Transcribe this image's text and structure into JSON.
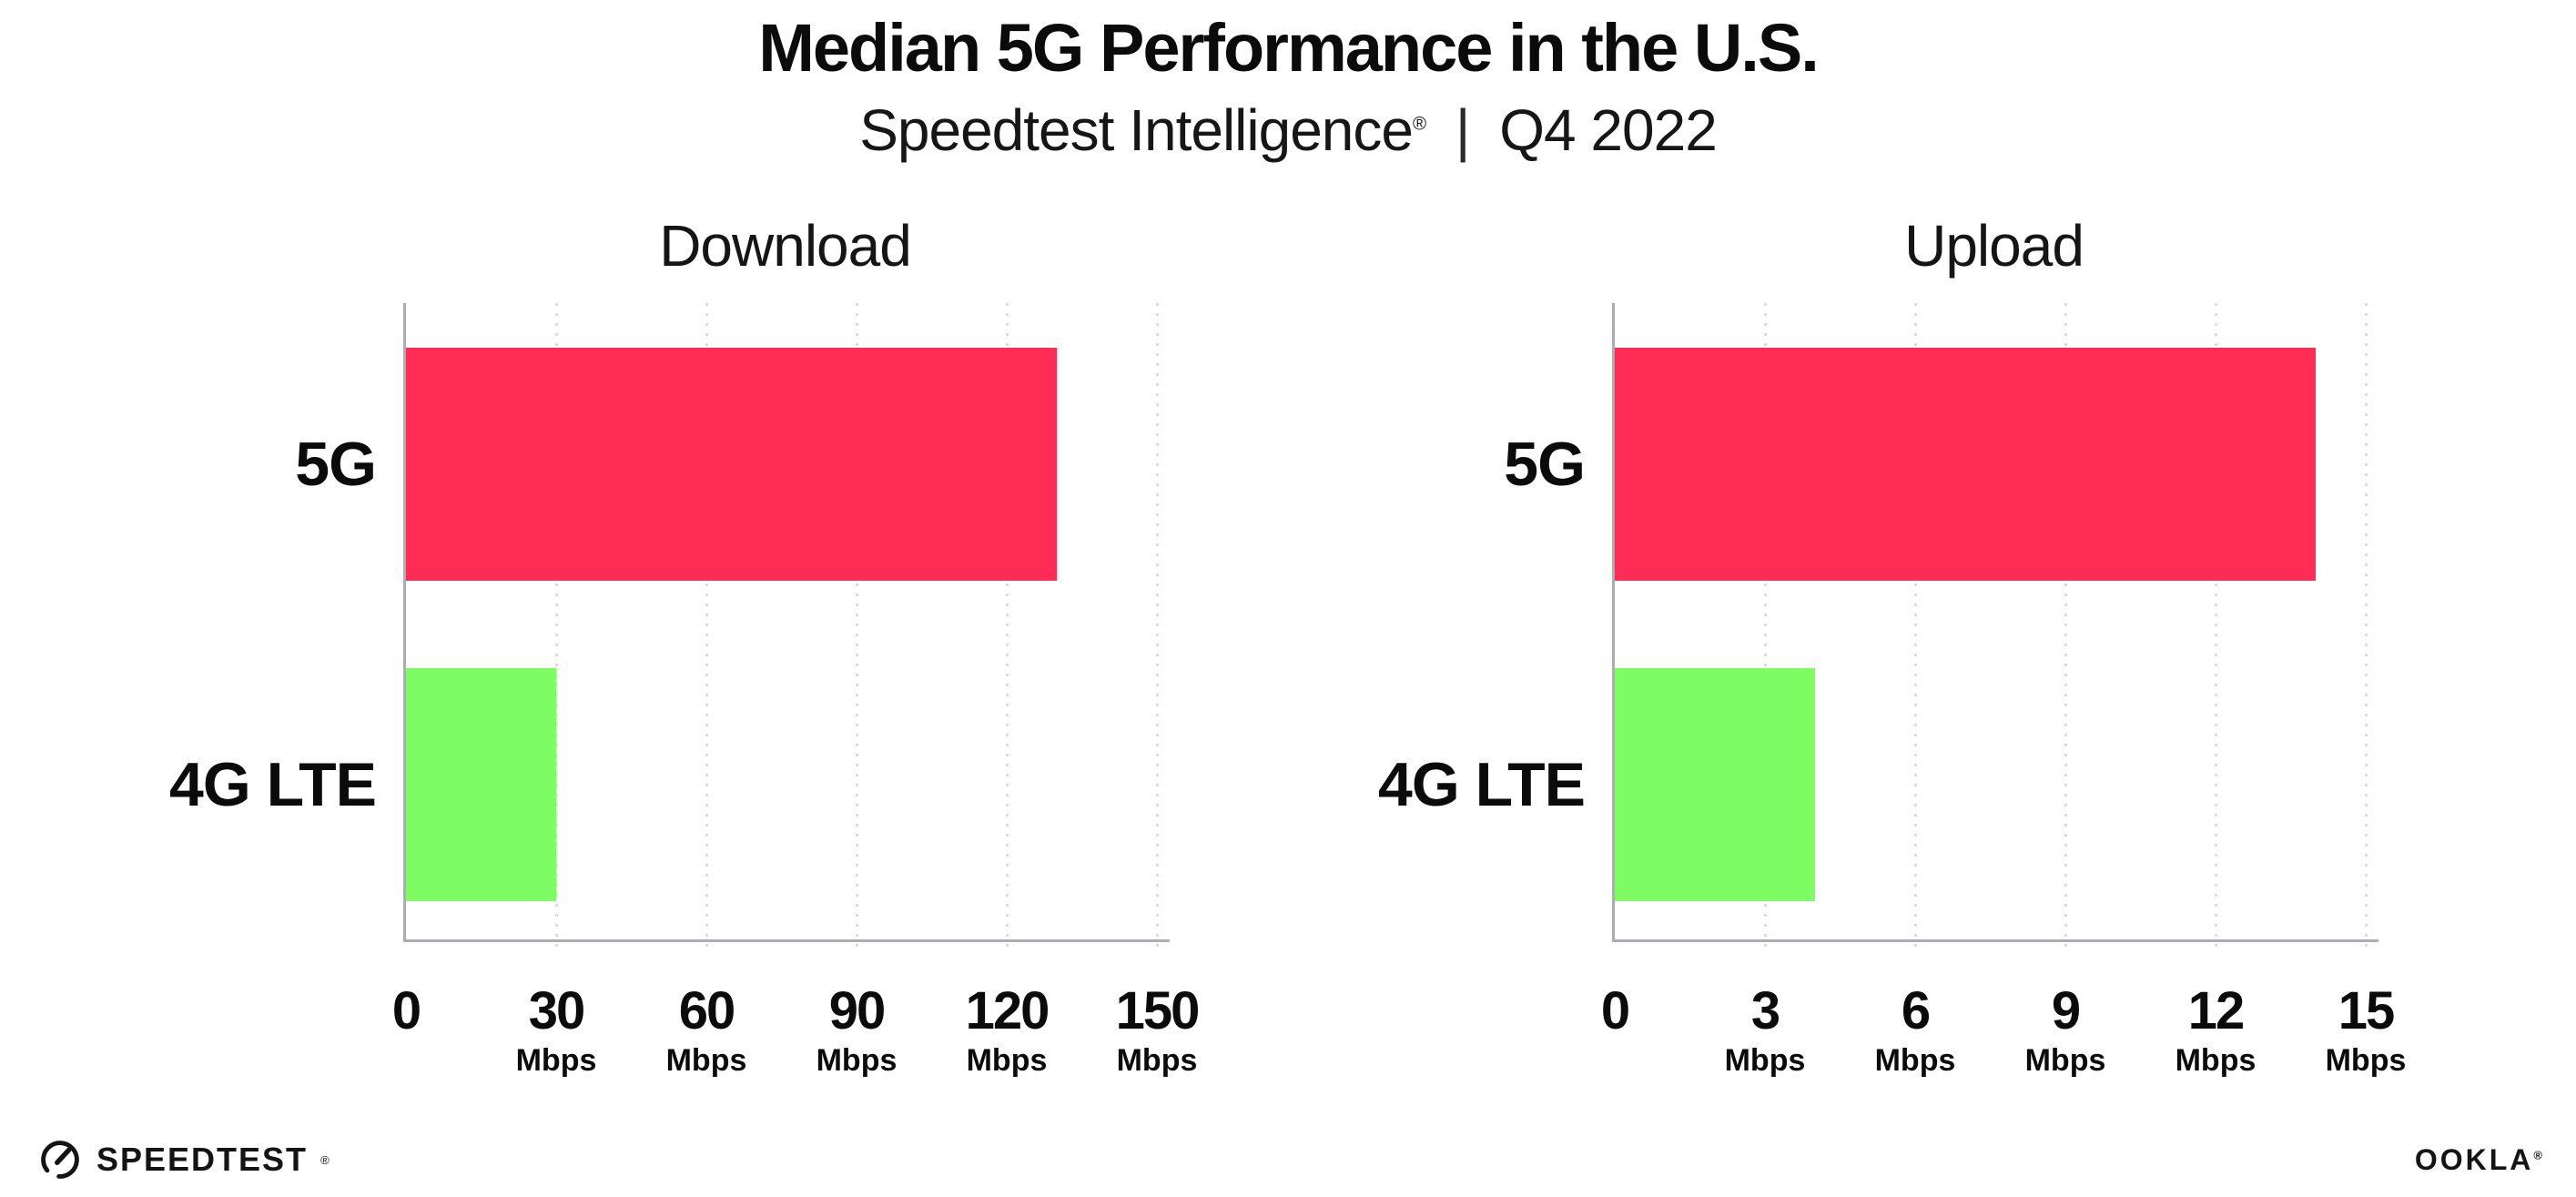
{
  "header": {
    "title": "Median 5G Performance in the U.S.",
    "subtitle_brand": "Speedtest Intelligence",
    "subtitle_reg": "®",
    "subtitle_sep": "|",
    "subtitle_period": "Q4 2022"
  },
  "colors": {
    "bar_5g": "#FF2D55",
    "bar_4g_lte": "#7EFC64",
    "gridline": "#DCDCE6",
    "axis": "#ACACB4",
    "text": "#0B0B0B"
  },
  "chart_data": [
    {
      "type": "bar",
      "orientation": "horizontal",
      "title": "Download",
      "categories": [
        "5G",
        "4G LTE"
      ],
      "values": [
        130,
        30
      ],
      "unit": "Mbps",
      "xlabel": "",
      "ylabel": "",
      "xlim": [
        0,
        152
      ],
      "xticks": [
        0,
        30,
        60,
        90,
        120,
        150
      ],
      "grid": "vertical-dotted",
      "legend": "none",
      "bar_colors": [
        "#FF2D55",
        "#7EFC64"
      ]
    },
    {
      "type": "bar",
      "orientation": "horizontal",
      "title": "Upload",
      "categories": [
        "5G",
        "4G LTE"
      ],
      "values": [
        14,
        4
      ],
      "unit": "Mbps",
      "xlabel": "",
      "ylabel": "",
      "xlim": [
        0,
        15.2
      ],
      "xticks": [
        0,
        3,
        6,
        9,
        12,
        15
      ],
      "grid": "vertical-dotted",
      "legend": "none",
      "bar_colors": [
        "#FF2D55",
        "#7EFC64"
      ]
    }
  ],
  "footer": {
    "speedtest_label": "SPEEDTEST",
    "speedtest_reg": "®",
    "ookla_label": "OOKLA",
    "ookla_reg": "®"
  }
}
